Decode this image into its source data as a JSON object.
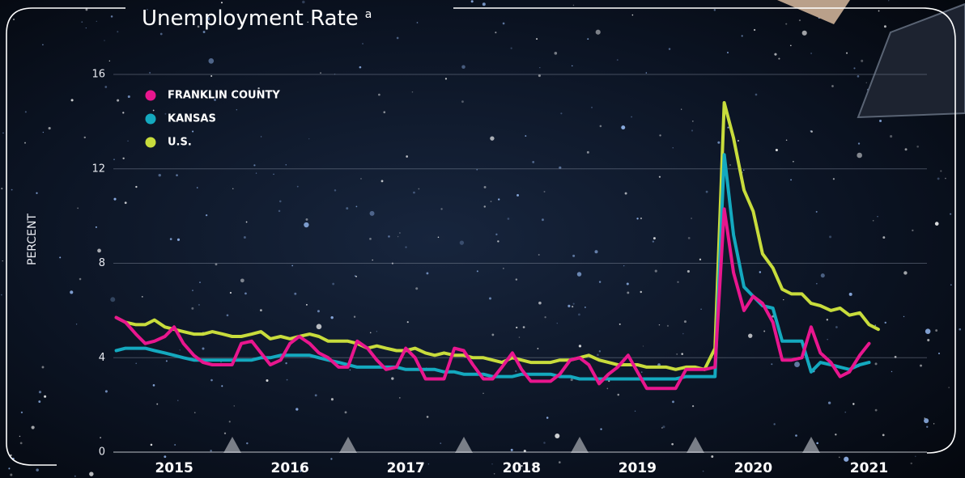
{
  "chart_data": {
    "type": "line",
    "title": "Unemployment Rate",
    "title_note": "a",
    "ylabel": "PERCENT",
    "xlim": [
      2014.87,
      2022.0
    ],
    "xticks": [
      {
        "value": 2015.5,
        "label": "2015"
      },
      {
        "value": 2016.5,
        "label": "2016"
      },
      {
        "value": 2017.5,
        "label": "2017"
      },
      {
        "value": 2018.5,
        "label": "2018"
      },
      {
        "value": 2019.5,
        "label": "2019"
      },
      {
        "value": 2020.5,
        "label": "2020"
      },
      {
        "value": 2021.5,
        "label": "2021"
      }
    ],
    "ylim": [
      0,
      16
    ],
    "yticks": [
      0,
      4,
      8,
      12,
      16
    ],
    "grid": true,
    "legend": "top-left",
    "x": [
      2015,
      2015.08,
      2015.17,
      2015.25,
      2015.33,
      2015.42,
      2015.5,
      2015.58,
      2015.67,
      2015.75,
      2015.83,
      2015.92,
      2016,
      2016.08,
      2016.17,
      2016.25,
      2016.33,
      2016.42,
      2016.5,
      2016.58,
      2016.67,
      2016.75,
      2016.83,
      2016.92,
      2017,
      2017.08,
      2017.17,
      2017.25,
      2017.33,
      2017.42,
      2017.5,
      2017.58,
      2017.67,
      2017.75,
      2017.83,
      2017.92,
      2018,
      2018.08,
      2018.17,
      2018.25,
      2018.33,
      2018.42,
      2018.5,
      2018.58,
      2018.67,
      2018.75,
      2018.83,
      2018.92,
      2019,
      2019.08,
      2019.17,
      2019.25,
      2019.33,
      2019.42,
      2019.5,
      2019.58,
      2019.67,
      2019.75,
      2019.83,
      2019.92,
      2020,
      2020.08,
      2020.17,
      2020.25,
      2020.33,
      2020.42,
      2020.5,
      2020.58,
      2020.67,
      2020.75,
      2020.83,
      2020.92,
      2021,
      2021.08,
      2021.17,
      2021.25,
      2021.33,
      2021.42,
      2021.5,
      2021.58
    ],
    "series": [
      {
        "name": "FRANKLIN COUNTY",
        "color": "#e8168e",
        "values": [
          5.7,
          5.5,
          5.0,
          4.6,
          4.7,
          4.9,
          5.3,
          4.6,
          4.1,
          3.8,
          3.7,
          3.7,
          3.7,
          4.6,
          4.7,
          4.2,
          3.7,
          3.9,
          4.6,
          4.9,
          4.6,
          4.2,
          4.0,
          3.6,
          3.6,
          4.7,
          4.4,
          3.9,
          3.5,
          3.6,
          4.4,
          4.0,
          3.1,
          3.1,
          3.1,
          4.4,
          4.3,
          3.7,
          3.1,
          3.1,
          3.6,
          4.2,
          3.5,
          3.0,
          3.0,
          3.0,
          3.3,
          3.9,
          4.0,
          3.7,
          2.9,
          3.3,
          3.6,
          4.1,
          3.4,
          2.7,
          2.7,
          2.7,
          2.7,
          3.5,
          3.5,
          3.5,
          3.6,
          10.3,
          7.6,
          6.0,
          6.6,
          6.3,
          5.5,
          3.9,
          3.9,
          4.0,
          5.3,
          4.2,
          3.8,
          3.2,
          3.4,
          4.1,
          4.6,
          null
        ]
      },
      {
        "name": "KANSAS",
        "color": "#14a9bf",
        "values": [
          4.3,
          4.4,
          4.4,
          4.4,
          4.3,
          4.2,
          4.1,
          4.0,
          3.9,
          3.9,
          3.9,
          3.9,
          3.9,
          3.9,
          3.9,
          4.0,
          4.0,
          4.1,
          4.1,
          4.1,
          4.1,
          4.0,
          3.9,
          3.8,
          3.7,
          3.6,
          3.6,
          3.6,
          3.6,
          3.6,
          3.5,
          3.5,
          3.5,
          3.5,
          3.4,
          3.4,
          3.3,
          3.3,
          3.3,
          3.2,
          3.2,
          3.2,
          3.3,
          3.3,
          3.3,
          3.3,
          3.2,
          3.2,
          3.1,
          3.1,
          3.1,
          3.1,
          3.1,
          3.1,
          3.1,
          3.1,
          3.1,
          3.1,
          3.1,
          3.2,
          3.2,
          3.2,
          3.2,
          12.6,
          9.2,
          7.0,
          6.6,
          6.2,
          6.1,
          4.7,
          4.7,
          4.7,
          3.4,
          3.8,
          3.7,
          3.6,
          3.5,
          3.7,
          3.8,
          null
        ]
      },
      {
        "name": "U.S.",
        "color": "#c8dc3c",
        "values": [
          5.7,
          5.5,
          5.4,
          5.4,
          5.6,
          5.3,
          5.2,
          5.1,
          5.0,
          5.0,
          5.1,
          5.0,
          4.9,
          4.9,
          5.0,
          5.1,
          4.8,
          4.9,
          4.8,
          4.9,
          5.0,
          4.9,
          4.7,
          4.7,
          4.7,
          4.6,
          4.4,
          4.5,
          4.4,
          4.3,
          4.3,
          4.4,
          4.2,
          4.1,
          4.2,
          4.1,
          4.1,
          4.0,
          4.0,
          3.9,
          3.8,
          4.0,
          3.9,
          3.8,
          3.8,
          3.8,
          3.9,
          3.9,
          4.0,
          4.1,
          3.9,
          3.8,
          3.7,
          3.7,
          3.7,
          3.6,
          3.6,
          3.6,
          3.5,
          3.6,
          3.6,
          3.5,
          4.4,
          14.8,
          13.3,
          11.1,
          10.2,
          8.4,
          7.8,
          6.9,
          6.7,
          6.7,
          6.3,
          6.2,
          6.0,
          6.1,
          5.8,
          5.9,
          5.4,
          5.2
        ]
      }
    ]
  }
}
